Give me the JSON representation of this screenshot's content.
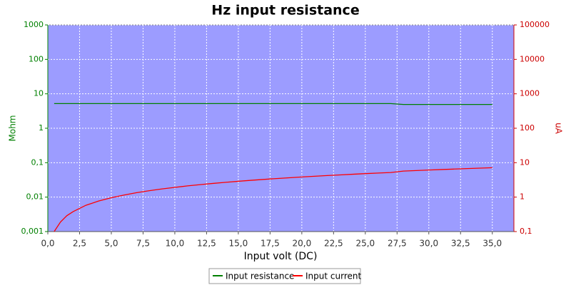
{
  "chart_data": {
    "type": "line",
    "title": "Hz input resistance",
    "xlabel": "Input volt (DC)",
    "ylabel": "Mohm",
    "y2label": "uA",
    "x": [
      0.5,
      1,
      1.5,
      2,
      3,
      4,
      5,
      6,
      7,
      8,
      9,
      10,
      11,
      12,
      13,
      14,
      15,
      16,
      17,
      18,
      19,
      20,
      21,
      22,
      23,
      24,
      25,
      26,
      27,
      28,
      29,
      30,
      31,
      32,
      33,
      34,
      35
    ],
    "series": [
      {
        "name": "Input resistance",
        "color": "#008000",
        "axis": "y",
        "values": [
          5.2,
          5.2,
          5.2,
          5.2,
          5.2,
          5.2,
          5.2,
          5.2,
          5.2,
          5.2,
          5.2,
          5.2,
          5.2,
          5.2,
          5.2,
          5.2,
          5.2,
          5.2,
          5.2,
          5.2,
          5.2,
          5.2,
          5.2,
          5.2,
          5.2,
          5.2,
          5.2,
          5.2,
          5.2,
          4.9,
          4.9,
          4.9,
          4.9,
          4.9,
          4.9,
          4.9,
          4.9
        ]
      },
      {
        "name": "Input current",
        "color": "#ff0000",
        "axis": "y2",
        "values": [
          0.1,
          0.19,
          0.29,
          0.38,
          0.58,
          0.77,
          0.96,
          1.15,
          1.35,
          1.54,
          1.73,
          1.92,
          2.12,
          2.31,
          2.5,
          2.69,
          2.88,
          3.08,
          3.27,
          3.46,
          3.65,
          3.85,
          4.04,
          4.23,
          4.42,
          4.62,
          4.81,
          5.0,
          5.19,
          5.71,
          5.92,
          6.12,
          6.33,
          6.53,
          6.73,
          6.94,
          7.14
        ]
      }
    ],
    "xlim": [
      0,
      36.7
    ],
    "xticks": [
      {
        "value": 0,
        "label": "0,0"
      },
      {
        "value": 2.5,
        "label": "2,5"
      },
      {
        "value": 5,
        "label": "5,0"
      },
      {
        "value": 7.5,
        "label": "7,5"
      },
      {
        "value": 10,
        "label": "10,0"
      },
      {
        "value": 12.5,
        "label": "12,5"
      },
      {
        "value": 15,
        "label": "15,0"
      },
      {
        "value": 17.5,
        "label": "17,5"
      },
      {
        "value": 20,
        "label": "20,0"
      },
      {
        "value": 22.5,
        "label": "22,5"
      },
      {
        "value": 25,
        "label": "25,0"
      },
      {
        "value": 27.5,
        "label": "27,5"
      },
      {
        "value": 30,
        "label": "30,0"
      },
      {
        "value": 32.5,
        "label": "32,5"
      },
      {
        "value": 35,
        "label": "35,0"
      }
    ],
    "ylim": [
      0.001,
      1000
    ],
    "yticks": [
      {
        "value": 0.001,
        "label": "0,001"
      },
      {
        "value": 0.01,
        "label": "0,01"
      },
      {
        "value": 0.1,
        "label": "0,1"
      },
      1,
      10,
      100,
      1000
    ],
    "y2lim": [
      0.1,
      100000
    ],
    "y2ticks": [
      {
        "value": 0.1,
        "label": "0,1"
      },
      1,
      10,
      100,
      1000,
      10000,
      100000
    ],
    "log_y": true,
    "log_y2": true,
    "grid": true,
    "legend": "bottom"
  }
}
